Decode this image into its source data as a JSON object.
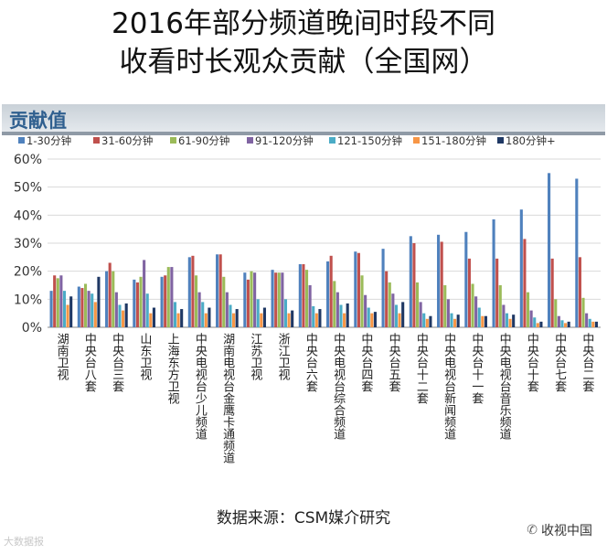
{
  "title_line1": "2016年部分频道晚间时段不同",
  "title_line2": "收看时长观众贡献（全国网）",
  "chart_label": "贡献值",
  "source": "数据来源：CSM媒介研究",
  "watermark_left": "大数据报",
  "watermark_right": "收视中国",
  "chart_data": {
    "type": "bar",
    "title": "2016年部分频道晚间时段不同收看时长观众贡献（全国网）",
    "ylabel": "贡献值",
    "ylim": [
      0,
      60
    ],
    "yticks": [
      "0%",
      "10%",
      "20%",
      "30%",
      "40%",
      "50%",
      "60%"
    ],
    "legend_position": "top",
    "categories": [
      "湖南卫视",
      "中央台八套",
      "中央台三套",
      "山东卫视",
      "上海东方卫视",
      "中央电视台少儿频道",
      "湖南电视台金鹰卡通频道",
      "江苏卫视",
      "浙江卫视",
      "中央台六套",
      "中央电视台综合频道",
      "中央台四套",
      "中央台五套",
      "中央台十二套",
      "中央电视台新闻频道",
      "中央台十一套",
      "中央电视台音乐频道",
      "中央台十套",
      "中央台七套",
      "中央台二套"
    ],
    "series": [
      {
        "name": "1-30分钟",
        "color": "#4f81bd",
        "values": [
          13,
          14.5,
          20,
          17,
          18,
          25,
          26,
          19.5,
          20.5,
          22.5,
          23.5,
          27,
          28,
          32.5,
          33,
          34,
          38.5,
          42,
          55,
          53
        ]
      },
      {
        "name": "31-60分钟",
        "color": "#c0504d",
        "values": [
          18.5,
          14,
          23,
          16,
          18.5,
          25.5,
          26,
          17,
          19.5,
          22.5,
          25.5,
          26.5,
          20,
          30,
          30.5,
          24.5,
          24.5,
          31.5,
          24.5,
          25
        ]
      },
      {
        "name": "61-90分钟",
        "color": "#9bbb59",
        "values": [
          17.5,
          15.5,
          20,
          18,
          21.5,
          18.5,
          18,
          20,
          19.5,
          20.5,
          16.5,
          18.5,
          16,
          16,
          15,
          15.5,
          15,
          12.5,
          10,
          10.5
        ]
      },
      {
        "name": "91-120分钟",
        "color": "#8064a2",
        "values": [
          18.5,
          13,
          12.5,
          24,
          21.5,
          12.5,
          12.5,
          19.5,
          19.5,
          15,
          12.5,
          11.5,
          12,
          9,
          10,
          11,
          8,
          6,
          4,
          5
        ]
      },
      {
        "name": "121-150分钟",
        "color": "#4bacc6",
        "values": [
          13,
          12,
          8,
          12,
          9,
          9,
          8,
          10,
          10,
          7.5,
          8,
          7,
          8,
          5,
          5,
          7,
          5,
          3.5,
          2.5,
          3
        ]
      },
      {
        "name": "151-180分钟",
        "color": "#f79646",
        "values": [
          8,
          9,
          6,
          5,
          5,
          5,
          5,
          5,
          5,
          5,
          5,
          5,
          5,
          3,
          3,
          4,
          3,
          1.5,
          1.5,
          2
        ]
      },
      {
        "name": "180分钟+",
        "color": "#1f3864",
        "values": [
          11,
          18,
          8.5,
          7,
          6.5,
          7,
          6.5,
          7,
          6,
          6.5,
          8.5,
          5.5,
          9,
          4,
          4.5,
          4,
          4.5,
          2,
          2,
          2
        ]
      }
    ]
  }
}
